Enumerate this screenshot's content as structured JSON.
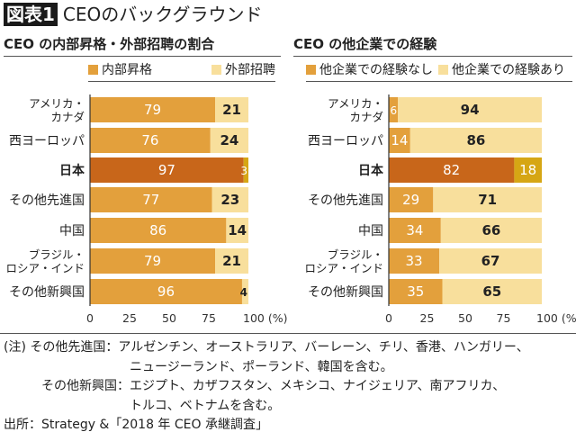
{
  "title": {
    "badge": "図表1",
    "text": "CEOのバックグラウンド"
  },
  "colors": {
    "primary": "#e3a03c",
    "secondary": "#f8df9c",
    "japan_primary": "#c8661a",
    "japan_secondary": "#d6a614"
  },
  "chart_data": [
    {
      "type": "bar",
      "stacked": true,
      "orientation": "horizontal",
      "title": "CEO の内部昇格・外部招聘の割合",
      "categories": [
        "アメリカ・\nカナダ",
        "西ヨーロッパ",
        "日本",
        "その他先進国",
        "中国",
        "ブラジル・\nロシア・インド",
        "その他新興国"
      ],
      "highlight": "日本",
      "series": [
        {
          "name": "内部昇格",
          "values": [
            79,
            76,
            97,
            77,
            86,
            79,
            96
          ]
        },
        {
          "name": "外部招聘",
          "values": [
            21,
            24,
            3,
            23,
            14,
            21,
            4
          ]
        }
      ],
      "xticks": [
        "0",
        "25",
        "50",
        "75",
        "100 (%)"
      ],
      "xlim": [
        0,
        100
      ]
    },
    {
      "type": "bar",
      "stacked": true,
      "orientation": "horizontal",
      "title": "CEO の他企業での経験",
      "categories": [
        "アメリカ・\nカナダ",
        "西ヨーロッパ",
        "日本",
        "その他先進国",
        "中国",
        "ブラジル・\nロシア・インド",
        "その他新興国"
      ],
      "highlight": "日本",
      "series": [
        {
          "name": "他企業での経験なし",
          "values": [
            6,
            14,
            82,
            29,
            34,
            33,
            35
          ]
        },
        {
          "name": "他企業での経験あり",
          "values": [
            94,
            86,
            18,
            71,
            66,
            67,
            65
          ]
        }
      ],
      "xticks": [
        "0",
        "25",
        "50",
        "75",
        "100 (%)"
      ],
      "xlim": [
        0,
        100
      ]
    }
  ],
  "notes": [
    "(注) その他先進国：アルゼンチン、オーストラリア、バーレーン、チリ、香港、ハンガリー、",
    "ニュージーランド、ポーランド、韓国を含む。",
    "その他新興国：エジプト、カザフスタン、メキシコ、ナイジェリア、南アフリカ、",
    "トルコ、ベトナムを含む。",
    "出所：Strategy &「2018 年 CEO 承継調査」"
  ]
}
